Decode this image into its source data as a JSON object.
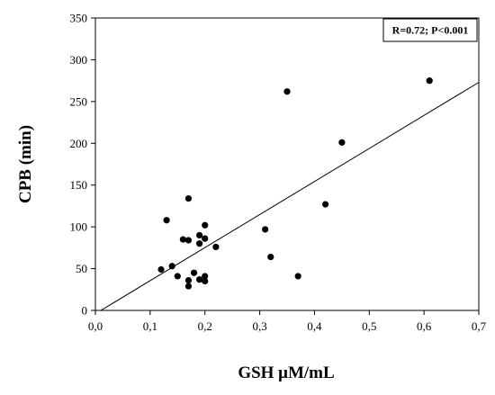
{
  "chart_data": {
    "type": "scatter",
    "title": "",
    "xlabel": "GSH μM/mL",
    "ylabel": "CPB (min)",
    "xlim": [
      0,
      0.7
    ],
    "ylim": [
      0,
      350
    ],
    "xticks": [
      "0,0",
      "0,1",
      "0,2",
      "0,3",
      "0,4",
      "0,5",
      "0,6",
      "0,7"
    ],
    "yticks": [
      "0",
      "50",
      "100",
      "150",
      "200",
      "250",
      "300",
      "350"
    ],
    "grid": false,
    "annotation": "R=0.72; P<0.001",
    "annotation_position": "top-right",
    "points": [
      {
        "x": 0.12,
        "y": 49
      },
      {
        "x": 0.13,
        "y": 108
      },
      {
        "x": 0.14,
        "y": 53
      },
      {
        "x": 0.15,
        "y": 41
      },
      {
        "x": 0.16,
        "y": 85
      },
      {
        "x": 0.17,
        "y": 134
      },
      {
        "x": 0.17,
        "y": 84
      },
      {
        "x": 0.17,
        "y": 36
      },
      {
        "x": 0.17,
        "y": 29
      },
      {
        "x": 0.18,
        "y": 45
      },
      {
        "x": 0.19,
        "y": 90
      },
      {
        "x": 0.19,
        "y": 80
      },
      {
        "x": 0.19,
        "y": 37
      },
      {
        "x": 0.2,
        "y": 102
      },
      {
        "x": 0.2,
        "y": 86
      },
      {
        "x": 0.2,
        "y": 41
      },
      {
        "x": 0.2,
        "y": 35
      },
      {
        "x": 0.22,
        "y": 76
      },
      {
        "x": 0.31,
        "y": 97
      },
      {
        "x": 0.32,
        "y": 64
      },
      {
        "x": 0.35,
        "y": 262
      },
      {
        "x": 0.37,
        "y": 41
      },
      {
        "x": 0.42,
        "y": 127
      },
      {
        "x": 0.45,
        "y": 201
      },
      {
        "x": 0.61,
        "y": 275
      }
    ],
    "fit_line": {
      "x": [
        0.01,
        0.7
      ],
      "y": [
        0,
        273
      ]
    }
  }
}
